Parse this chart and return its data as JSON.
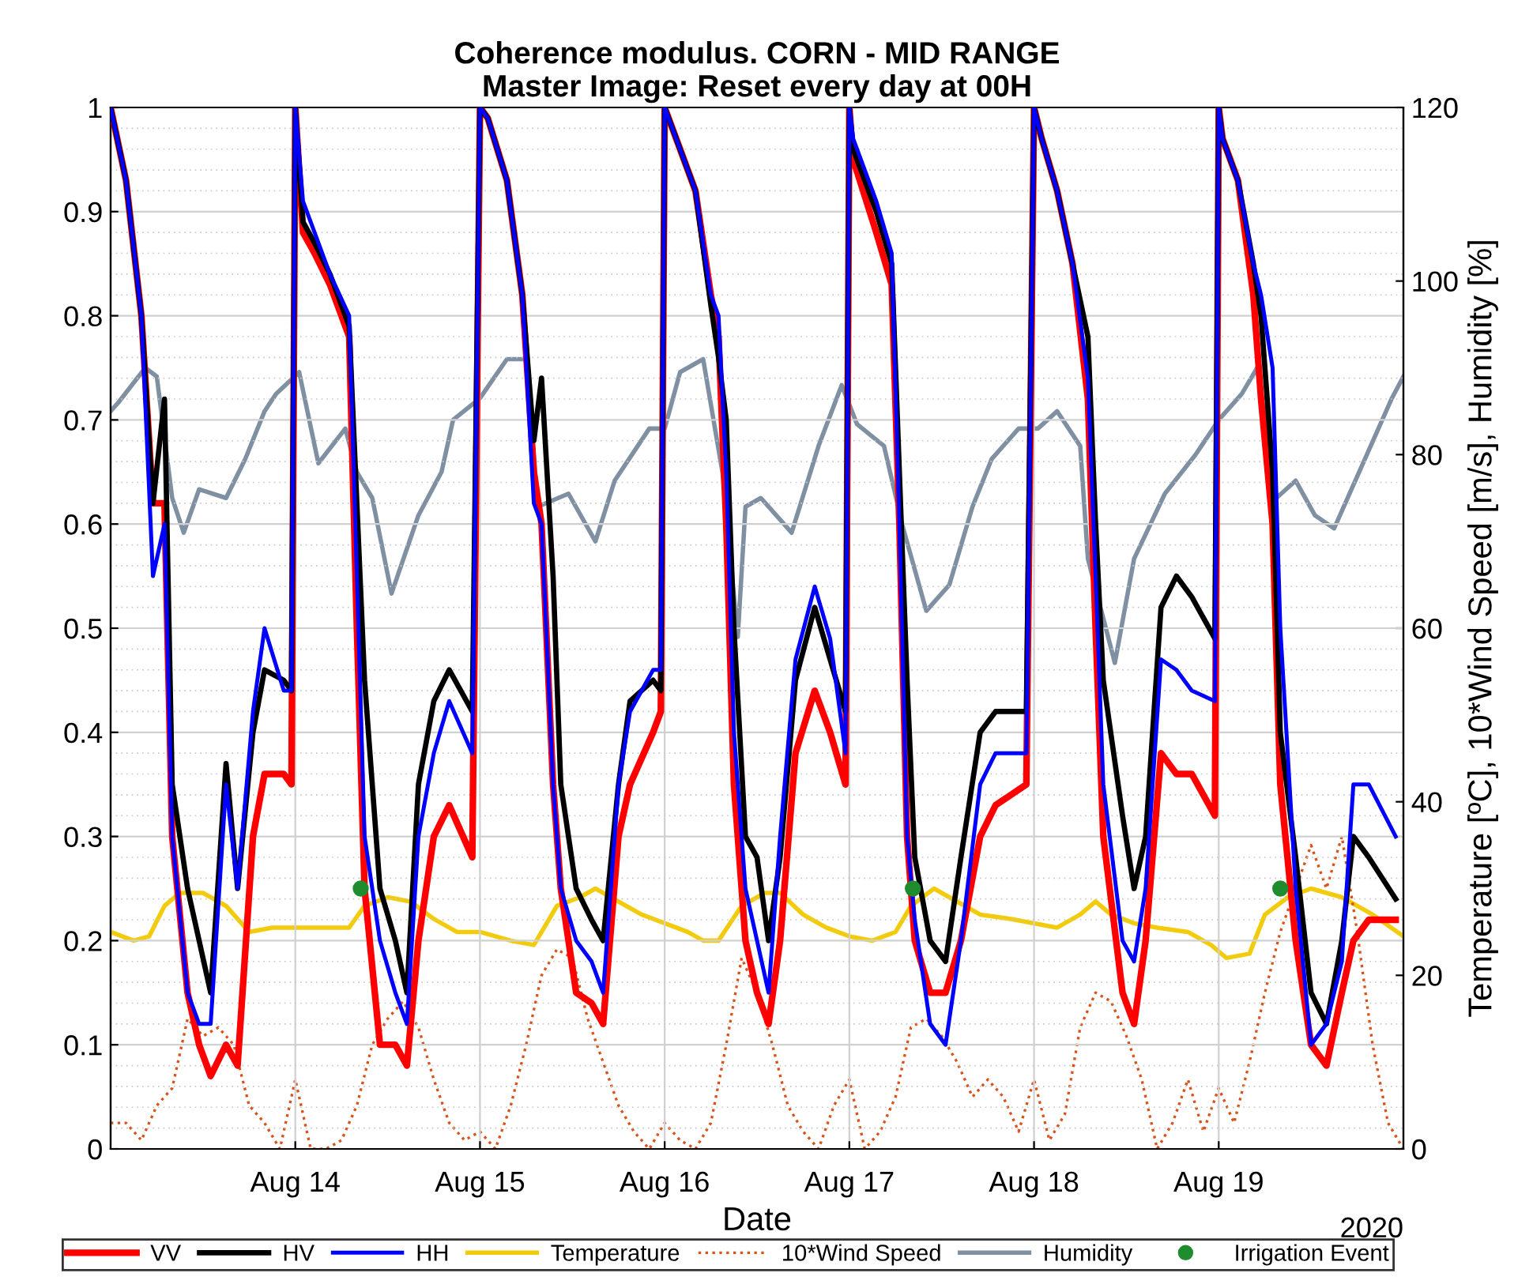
{
  "chart_data": {
    "type": "line",
    "title": "Coherence modulus. CORN - MID RANGE",
    "subtitle": "Master Image: Reset every day at 00H",
    "xlabel": "Date",
    "y2label": "Temperature [ºC], 10*Wind Speed [m/s], Humidity [%]",
    "annotations": [
      "2020"
    ],
    "x": [
      "2020-08-13T00:00",
      "2020-08-13T02:00",
      "2020-08-13T04:00",
      "2020-08-13T05:30",
      "2020-08-13T07:00",
      "2020-08-13T08:00",
      "2020-08-13T10:00",
      "2020-08-13T11:30",
      "2020-08-13T13:00",
      "2020-08-13T15:00",
      "2020-08-13T16:30",
      "2020-08-13T18:30",
      "2020-08-13T20:00",
      "2020-08-13T22:30",
      "2020-08-13T23:30",
      "2020-08-14T00:00",
      "2020-08-14T01:00",
      "2020-08-14T02:30",
      "2020-08-14T04:30",
      "2020-08-14T07:00",
      "2020-08-14T08:00",
      "2020-08-14T09:00",
      "2020-08-14T11:00",
      "2020-08-14T13:00",
      "2020-08-14T14:30",
      "2020-08-14T16:00",
      "2020-08-14T18:00",
      "2020-08-14T20:00",
      "2020-08-14T23:00",
      "2020-08-15T00:00",
      "2020-08-15T01:00",
      "2020-08-15T03:30",
      "2020-08-15T05:30",
      "2020-08-15T07:00",
      "2020-08-15T08:00",
      "2020-08-15T09:30",
      "2020-08-15T10:30",
      "2020-08-15T12:30",
      "2020-08-15T14:30",
      "2020-08-15T16:00",
      "2020-08-15T18:00",
      "2020-08-15T19:30",
      "2020-08-15T22:30",
      "2020-08-15T23:30",
      "2020-08-16T00:00",
      "2020-08-16T01:30",
      "2020-08-16T04:00",
      "2020-08-16T06:00",
      "2020-08-16T07:00",
      "2020-08-16T08:00",
      "2020-08-16T09:00",
      "2020-08-16T10:30",
      "2020-08-16T12:00",
      "2020-08-16T13:30",
      "2020-08-16T15:00",
      "2020-08-16T17:00",
      "2020-08-16T19:30",
      "2020-08-16T21:30",
      "2020-08-16T23:30",
      "2020-08-17T00:00",
      "2020-08-17T00:30",
      "2020-08-17T03:30",
      "2020-08-17T05:30",
      "2020-08-17T06:30",
      "2020-08-17T07:30",
      "2020-08-17T08:30",
      "2020-08-17T10:30",
      "2020-08-17T12:30",
      "2020-08-17T14:30",
      "2020-08-17T17:00",
      "2020-08-17T19:00",
      "2020-08-17T23:00",
      "2020-08-18T00:00",
      "2020-08-18T01:00",
      "2020-08-18T03:00",
      "2020-08-18T05:00",
      "2020-08-18T07:00",
      "2020-08-18T08:00",
      "2020-08-18T09:00",
      "2020-08-18T11:30",
      "2020-08-18T13:00",
      "2020-08-18T14:30",
      "2020-08-18T16:30",
      "2020-08-18T18:30",
      "2020-08-18T20:30",
      "2020-08-18T23:30",
      "2020-08-19T00:00",
      "2020-08-19T00:30",
      "2020-08-19T02:30",
      "2020-08-19T04:30",
      "2020-08-19T05:30",
      "2020-08-19T07:00",
      "2020-08-19T08:00",
      "2020-08-19T10:00",
      "2020-08-19T12:00",
      "2020-08-19T14:00",
      "2020-08-19T16:00",
      "2020-08-19T17:30",
      "2020-08-19T19:30",
      "2020-08-19T23:00"
    ],
    "series": [
      {
        "name": "VV",
        "color": "#ff0000",
        "values": [
          1,
          0.93,
          0.8,
          0.62,
          0.62,
          0.3,
          0.15,
          0.1,
          0.07,
          0.1,
          0.08,
          0.3,
          0.36,
          0.36,
          0.35,
          1,
          0.88,
          0.86,
          0.83,
          0.78,
          0.5,
          0.25,
          0.1,
          0.1,
          0.08,
          0.2,
          0.3,
          0.33,
          0.28,
          1,
          0.99,
          0.93,
          0.82,
          0.65,
          0.6,
          0.35,
          0.25,
          0.15,
          0.14,
          0.12,
          0.3,
          0.35,
          0.4,
          0.42,
          1,
          0.97,
          0.92,
          0.82,
          0.78,
          0.6,
          0.35,
          0.2,
          0.15,
          0.12,
          0.2,
          0.38,
          0.44,
          0.4,
          0.35,
          1,
          0.95,
          0.88,
          0.83,
          0.6,
          0.3,
          0.2,
          0.15,
          0.15,
          0.2,
          0.3,
          0.33,
          0.35,
          1,
          0.97,
          0.92,
          0.85,
          0.72,
          0.5,
          0.3,
          0.15,
          0.12,
          0.2,
          0.38,
          0.36,
          0.36,
          0.32,
          1,
          0.97,
          0.93,
          0.82,
          0.72,
          0.6,
          0.35,
          0.2,
          0.1,
          0.08,
          0.15,
          0.2,
          0.22,
          0.22
        ]
      },
      {
        "name": "HV",
        "color": "#000000",
        "values": [
          1,
          0.93,
          0.8,
          0.62,
          0.72,
          0.35,
          0.25,
          0.2,
          0.15,
          0.37,
          0.25,
          0.4,
          0.46,
          0.45,
          0.44,
          1,
          0.89,
          0.87,
          0.84,
          0.79,
          0.62,
          0.45,
          0.25,
          0.2,
          0.15,
          0.35,
          0.43,
          0.46,
          0.42,
          1,
          0.99,
          0.93,
          0.82,
          0.68,
          0.74,
          0.55,
          0.35,
          0.25,
          0.22,
          0.2,
          0.35,
          0.43,
          0.45,
          0.44,
          1,
          0.97,
          0.92,
          0.81,
          0.76,
          0.7,
          0.5,
          0.3,
          0.28,
          0.2,
          0.28,
          0.45,
          0.52,
          0.47,
          0.42,
          1,
          0.96,
          0.9,
          0.85,
          0.65,
          0.45,
          0.28,
          0.2,
          0.18,
          0.28,
          0.4,
          0.42,
          0.42,
          1,
          0.97,
          0.92,
          0.85,
          0.78,
          0.6,
          0.45,
          0.32,
          0.25,
          0.3,
          0.52,
          0.55,
          0.53,
          0.49,
          1,
          0.97,
          0.93,
          0.85,
          0.8,
          0.65,
          0.4,
          0.28,
          0.15,
          0.12,
          0.2,
          0.3,
          0.28,
          0.24
        ]
      },
      {
        "name": "HH",
        "color": "#0000ff",
        "values": [
          1,
          0.93,
          0.8,
          0.55,
          0.6,
          0.3,
          0.15,
          0.12,
          0.12,
          0.35,
          0.25,
          0.42,
          0.5,
          0.44,
          0.44,
          1,
          0.91,
          0.88,
          0.84,
          0.8,
          0.55,
          0.3,
          0.2,
          0.15,
          0.12,
          0.3,
          0.38,
          0.43,
          0.38,
          1,
          0.99,
          0.93,
          0.82,
          0.62,
          0.6,
          0.35,
          0.25,
          0.2,
          0.18,
          0.15,
          0.35,
          0.42,
          0.46,
          0.46,
          1,
          0.97,
          0.92,
          0.82,
          0.8,
          0.65,
          0.4,
          0.25,
          0.2,
          0.15,
          0.3,
          0.47,
          0.54,
          0.49,
          0.38,
          1,
          0.97,
          0.91,
          0.86,
          0.6,
          0.3,
          0.22,
          0.12,
          0.1,
          0.2,
          0.35,
          0.38,
          0.38,
          1,
          0.97,
          0.92,
          0.85,
          0.74,
          0.55,
          0.35,
          0.2,
          0.18,
          0.25,
          0.47,
          0.46,
          0.44,
          0.43,
          1,
          0.97,
          0.93,
          0.85,
          0.82,
          0.75,
          0.5,
          0.25,
          0.1,
          0.12,
          0.18,
          0.35,
          0.35,
          0.3
        ]
      },
      {
        "name": "Temperature",
        "color": "#f2cc0c",
        "axis": "y2",
        "x": [
          "2020-08-13T00:00",
          "2020-08-13T03:00",
          "2020-08-13T05:00",
          "2020-08-13T07:00",
          "2020-08-13T09:00",
          "2020-08-13T12:00",
          "2020-08-13T15:00",
          "2020-08-13T18:00",
          "2020-08-13T21:00",
          "2020-08-14T00:00",
          "2020-08-14T04:00",
          "2020-08-14T07:00",
          "2020-08-14T09:00",
          "2020-08-14T12:00",
          "2020-08-14T15:00",
          "2020-08-14T18:00",
          "2020-08-14T21:00",
          "2020-08-15T00:00",
          "2020-08-15T04:00",
          "2020-08-15T07:00",
          "2020-08-15T10:00",
          "2020-08-15T13:00",
          "2020-08-15T15:00",
          "2020-08-15T18:00",
          "2020-08-15T21:00",
          "2020-08-16T00:00",
          "2020-08-16T03:00",
          "2020-08-16T05:00",
          "2020-08-16T07:00",
          "2020-08-16T10:00",
          "2020-08-16T13:00",
          "2020-08-16T15:00",
          "2020-08-16T18:00",
          "2020-08-16T21:00",
          "2020-08-17T00:00",
          "2020-08-17T03:00",
          "2020-08-17T06:00",
          "2020-08-17T08:00",
          "2020-08-17T11:00",
          "2020-08-17T14:00",
          "2020-08-17T17:00",
          "2020-08-17T21:00",
          "2020-08-18T00:00",
          "2020-08-18T03:00",
          "2020-08-18T06:00",
          "2020-08-18T08:00",
          "2020-08-18T10:00",
          "2020-08-18T13:00",
          "2020-08-18T16:00",
          "2020-08-18T20:00",
          "2020-08-18T23:00",
          "2020-08-19T01:00",
          "2020-08-19T04:00",
          "2020-08-19T06:00",
          "2020-08-19T09:00",
          "2020-08-19T12:00",
          "2020-08-19T16:00",
          "2020-08-19T20:00",
          "2020-08-20T00:00"
        ],
        "values": [
          25,
          24,
          24.5,
          28,
          29.5,
          29.5,
          28,
          25,
          25.5,
          25.5,
          25.5,
          25.5,
          28,
          29,
          28.5,
          26.5,
          25,
          25,
          24,
          23.5,
          28,
          29,
          30,
          28.5,
          27,
          26,
          25,
          24,
          24,
          28,
          29.5,
          29.5,
          27,
          25.5,
          24.5,
          24,
          25,
          28,
          30,
          28.5,
          27,
          26.5,
          26,
          25.5,
          27,
          28.5,
          27,
          26,
          25.5,
          25,
          23.5,
          22,
          22.5,
          27,
          29,
          30,
          29,
          27,
          24.5
        ]
      },
      {
        "name": "10*Wind Speed",
        "color": "#d95319",
        "axis": "y2",
        "line_style": "dotted",
        "x": [
          "2020-08-13T00:00",
          "2020-08-13T02:00",
          "2020-08-13T04:00",
          "2020-08-13T06:00",
          "2020-08-13T08:00",
          "2020-08-13T10:00",
          "2020-08-13T12:00",
          "2020-08-13T14:00",
          "2020-08-13T16:00",
          "2020-08-13T18:00",
          "2020-08-13T20:00",
          "2020-08-13T22:00",
          "2020-08-14T00:00",
          "2020-08-14T02:00",
          "2020-08-14T04:00",
          "2020-08-14T06:00",
          "2020-08-14T08:00",
          "2020-08-14T10:00",
          "2020-08-14T12:00",
          "2020-08-14T14:00",
          "2020-08-14T16:00",
          "2020-08-14T18:00",
          "2020-08-14T20:00",
          "2020-08-14T22:00",
          "2020-08-15T00:00",
          "2020-08-15T02:00",
          "2020-08-15T04:00",
          "2020-08-15T06:00",
          "2020-08-15T08:00",
          "2020-08-15T10:00",
          "2020-08-15T12:00",
          "2020-08-15T14:00",
          "2020-08-15T16:00",
          "2020-08-15T18:00",
          "2020-08-15T20:00",
          "2020-08-15T22:00",
          "2020-08-16T00:00",
          "2020-08-16T02:00",
          "2020-08-16T04:00",
          "2020-08-16T06:00",
          "2020-08-16T08:00",
          "2020-08-16T10:00",
          "2020-08-16T12:00",
          "2020-08-16T14:00",
          "2020-08-16T16:00",
          "2020-08-16T18:00",
          "2020-08-16T20:00",
          "2020-08-16T22:00",
          "2020-08-17T00:00",
          "2020-08-17T02:00",
          "2020-08-17T04:00",
          "2020-08-17T06:00",
          "2020-08-17T08:00",
          "2020-08-17T10:00",
          "2020-08-17T12:00",
          "2020-08-17T14:00",
          "2020-08-17T16:00",
          "2020-08-17T18:00",
          "2020-08-17T20:00",
          "2020-08-17T22:00",
          "2020-08-18T00:00",
          "2020-08-18T02:00",
          "2020-08-18T04:00",
          "2020-08-18T06:00",
          "2020-08-18T08:00",
          "2020-08-18T10:00",
          "2020-08-18T12:00",
          "2020-08-18T14:00",
          "2020-08-18T16:00",
          "2020-08-18T18:00",
          "2020-08-18T20:00",
          "2020-08-18T22:00",
          "2020-08-19T00:00",
          "2020-08-19T02:00",
          "2020-08-19T04:00",
          "2020-08-19T06:00",
          "2020-08-19T08:00",
          "2020-08-19T10:00",
          "2020-08-19T12:00",
          "2020-08-19T14:00",
          "2020-08-19T16:00",
          "2020-08-19T18:00",
          "2020-08-19T20:00",
          "2020-08-19T22:00",
          "2020-08-20T00:00"
        ],
        "values": [
          3,
          3,
          1,
          5,
          7,
          15,
          13,
          14,
          12,
          5,
          3,
          0,
          8,
          0,
          0,
          1,
          5,
          12,
          15,
          17,
          14,
          8,
          3,
          1,
          2,
          0,
          5,
          12,
          20,
          23,
          22,
          15,
          10,
          5,
          2,
          0,
          3,
          1,
          0,
          3,
          12,
          22,
          18,
          12,
          5,
          2,
          0,
          5,
          8,
          0,
          2,
          6,
          14,
          15,
          13,
          10,
          6,
          8,
          6,
          2,
          8,
          1,
          4,
          14,
          18,
          17,
          13,
          8,
          0,
          3,
          8,
          2,
          7,
          3,
          10,
          18,
          25,
          30,
          35,
          30,
          36,
          25,
          12,
          3,
          0
        ]
      },
      {
        "name": "Humidity",
        "color": "#8090a3",
        "axis": "y2",
        "x": [
          "2020-08-13T00:00",
          "2020-08-13T01:00",
          "2020-08-13T04:30",
          "2020-08-13T06:00",
          "2020-08-13T08:00",
          "2020-08-13T09:30",
          "2020-08-13T11:30",
          "2020-08-13T15:00",
          "2020-08-13T17:30",
          "2020-08-13T20:00",
          "2020-08-13T21:30",
          "2020-08-14T00:30",
          "2020-08-14T03:00",
          "2020-08-14T06:30",
          "2020-08-14T08:00",
          "2020-08-14T10:00",
          "2020-08-14T12:30",
          "2020-08-14T16:00",
          "2020-08-14T19:00",
          "2020-08-14T20:30",
          "2020-08-15T00:00",
          "2020-08-15T03:30",
          "2020-08-15T06:00",
          "2020-08-15T07:30",
          "2020-08-15T11:30",
          "2020-08-15T15:00",
          "2020-08-15T17:30",
          "2020-08-15T22:00",
          "2020-08-16T00:00",
          "2020-08-16T02:00",
          "2020-08-16T05:00",
          "2020-08-16T07:30",
          "2020-08-16T09:30",
          "2020-08-16T10:30",
          "2020-08-16T12:30",
          "2020-08-16T14:30",
          "2020-08-16T16:30",
          "2020-08-16T20:00",
          "2020-08-16T23:00",
          "2020-08-17T01:00",
          "2020-08-17T04:30",
          "2020-08-17T07:00",
          "2020-08-17T10:00",
          "2020-08-17T13:00",
          "2020-08-17T16:00",
          "2020-08-17T18:30",
          "2020-08-17T22:00",
          "2020-08-18T00:30",
          "2020-08-18T03:00",
          "2020-08-18T06:00",
          "2020-08-18T07:00",
          "2020-08-18T10:30",
          "2020-08-18T13:00",
          "2020-08-18T17:00",
          "2020-08-18T21:00",
          "2020-08-19T00:00",
          "2020-08-19T03:00",
          "2020-08-19T05:00",
          "2020-08-19T07:30",
          "2020-08-19T10:00",
          "2020-08-19T12:30",
          "2020-08-19T15:00",
          "2020-08-19T19:00",
          "2020-08-19T22:30",
          "2020-08-20T00:00"
        ],
        "values": [
          85,
          86,
          90,
          89,
          75,
          71,
          76,
          75,
          79.5,
          85,
          87,
          89.5,
          79,
          83,
          78,
          75,
          64,
          73,
          78,
          84,
          86.5,
          91,
          91,
          74,
          75.5,
          70,
          77,
          83,
          83,
          89.5,
          91,
          78,
          59,
          74,
          75,
          73,
          71,
          81,
          88,
          83.5,
          81,
          71.5,
          62,
          65,
          74,
          79.5,
          83,
          83,
          85,
          81,
          68,
          56,
          68,
          75.5,
          80,
          84,
          87,
          90,
          75,
          77,
          73,
          71.5,
          79.5,
          86.5,
          89
        ]
      },
      {
        "name": "Irrigation Event",
        "type": "scatter",
        "color": "#1f8c2e",
        "marker": "circle",
        "x": [
          "2020-08-14T08:30",
          "2020-08-17T08:15",
          "2020-08-19T08:00"
        ],
        "values": [
          0.25,
          0.25,
          0.25
        ]
      }
    ],
    "xlim": [
      "2020-08-13T00:00",
      "2020-08-20T00:00"
    ],
    "xticks": [
      {
        "value": "2020-08-14",
        "label": "Aug 14"
      },
      {
        "value": "2020-08-15",
        "label": "Aug 15"
      },
      {
        "value": "2020-08-16",
        "label": "Aug 16"
      },
      {
        "value": "2020-08-17",
        "label": "Aug 17"
      },
      {
        "value": "2020-08-18",
        "label": "Aug 18"
      },
      {
        "value": "2020-08-19",
        "label": "Aug 19"
      }
    ],
    "ylim": [
      0,
      1
    ],
    "yticks": [
      0,
      0.1,
      0.2,
      0.3,
      0.4,
      0.5,
      0.6,
      0.7,
      0.8,
      0.9,
      1
    ],
    "y2lim": [
      0,
      120
    ],
    "y2ticks": [
      0,
      20,
      40,
      60,
      80,
      100,
      120
    ],
    "grid": true,
    "legend": "bottom",
    "marker": "none",
    "line_style": "solid"
  }
}
